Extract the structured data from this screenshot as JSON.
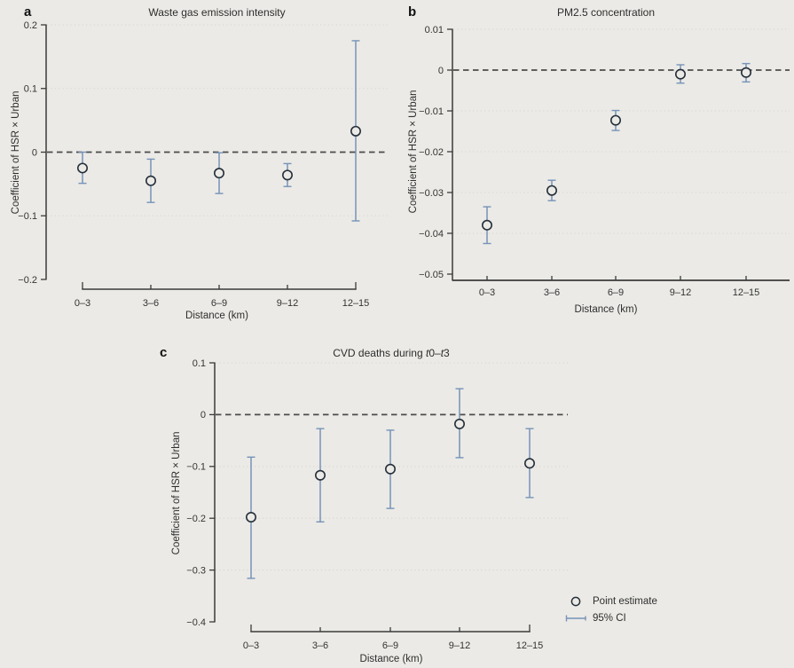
{
  "figure": {
    "colors": {
      "background": "#ebeae6",
      "ci_bar": "#7693b8",
      "point_stroke": "#252f3a",
      "zero_line": "#4c4c4c",
      "gridline": "#d6d5d0",
      "axis": "#3a3a3a",
      "text": "#2e2e2e"
    },
    "legend": {
      "point_label": "Point estimate",
      "ci_label": "95% CI",
      "point_icon": "open-circle",
      "ci_icon": "horizontal-error-bar"
    }
  },
  "chart_data": [
    {
      "type": "scatter",
      "panel_label": "a",
      "title": "Waste gas emission intensity",
      "xlabel": "Distance (km)",
      "ylabel": "Coefficient of HSR × Urban",
      "categories": [
        "0–3",
        "3–6",
        "6–9",
        "9–12",
        "12–15"
      ],
      "ylim": [
        -0.2,
        0.2
      ],
      "yticks": [
        0.2,
        0.1,
        0,
        -0.1,
        -0.2
      ],
      "ytick_labels": [
        "0.2",
        "0.1",
        "0",
        "−0.1",
        "−0.2"
      ],
      "grid": "dotted-horizontal",
      "zero_line": true,
      "legend_position": "none",
      "points": [
        {
          "category": "0–3",
          "estimate": -0.025,
          "ci_low": -0.049,
          "ci_high": 0.0
        },
        {
          "category": "3–6",
          "estimate": -0.045,
          "ci_low": -0.079,
          "ci_high": -0.011
        },
        {
          "category": "6–9",
          "estimate": -0.033,
          "ci_low": -0.065,
          "ci_high": -0.001
        },
        {
          "category": "9–12",
          "estimate": -0.036,
          "ci_low": -0.054,
          "ci_high": -0.018
        },
        {
          "category": "12–15",
          "estimate": 0.033,
          "ci_low": -0.108,
          "ci_high": 0.175
        }
      ]
    },
    {
      "type": "scatter",
      "panel_label": "b",
      "title": "PM2.5 concentration",
      "xlabel": "Distance (km)",
      "ylabel": "Coefficient of HSR × Urban",
      "categories": [
        "0–3",
        "3–6",
        "6–9",
        "9–12",
        "12–15"
      ],
      "ylim": [
        -0.05,
        0.01
      ],
      "yticks": [
        0.01,
        0,
        -0.01,
        -0.02,
        -0.03,
        -0.04,
        -0.05
      ],
      "ytick_labels": [
        "0.01",
        "0",
        "−0.01",
        "−0.02",
        "−0.03",
        "−0.04",
        "−0.05"
      ],
      "grid": "dotted-horizontal",
      "zero_line": true,
      "legend_position": "none",
      "points": [
        {
          "category": "0–3",
          "estimate": -0.038,
          "ci_low": -0.0425,
          "ci_high": -0.0335
        },
        {
          "category": "3–6",
          "estimate": -0.0295,
          "ci_low": -0.032,
          "ci_high": -0.027
        },
        {
          "category": "6–9",
          "estimate": -0.0123,
          "ci_low": -0.0148,
          "ci_high": -0.0099
        },
        {
          "category": "9–12",
          "estimate": -0.001,
          "ci_low": -0.0032,
          "ci_high": 0.0013
        },
        {
          "category": "12–15",
          "estimate": -0.0006,
          "ci_low": -0.0029,
          "ci_high": 0.0016
        }
      ]
    },
    {
      "type": "scatter",
      "panel_label": "c",
      "title": "CVD deaths during t0–t3",
      "title_parts": [
        {
          "text": "CVD deaths during ",
          "italic": false
        },
        {
          "text": "t",
          "italic": true
        },
        {
          "text": "0–",
          "italic": false
        },
        {
          "text": "t",
          "italic": true
        },
        {
          "text": "3",
          "italic": false
        }
      ],
      "xlabel": "Distance (km)",
      "ylabel": "Coefficient of HSR × Urban",
      "categories": [
        "0–3",
        "3–6",
        "6–9",
        "9–12",
        "12–15"
      ],
      "ylim": [
        -0.4,
        0.1
      ],
      "yticks": [
        0.1,
        0,
        -0.1,
        -0.2,
        -0.3,
        -0.4
      ],
      "ytick_labels": [
        "0.1",
        "0",
        "−0.1",
        "−0.2",
        "−0.3",
        "−0.4"
      ],
      "grid": "dotted-horizontal",
      "zero_line": true,
      "legend_position": "bottom-right",
      "points": [
        {
          "category": "0–3",
          "estimate": -0.198,
          "ci_low": -0.316,
          "ci_high": -0.082
        },
        {
          "category": "3–6",
          "estimate": -0.117,
          "ci_low": -0.207,
          "ci_high": -0.027
        },
        {
          "category": "6–9",
          "estimate": -0.105,
          "ci_low": -0.181,
          "ci_high": -0.03
        },
        {
          "category": "9–12",
          "estimate": -0.018,
          "ci_low": -0.083,
          "ci_high": 0.05
        },
        {
          "category": "12–15",
          "estimate": -0.094,
          "ci_low": -0.16,
          "ci_high": -0.027
        }
      ]
    }
  ]
}
